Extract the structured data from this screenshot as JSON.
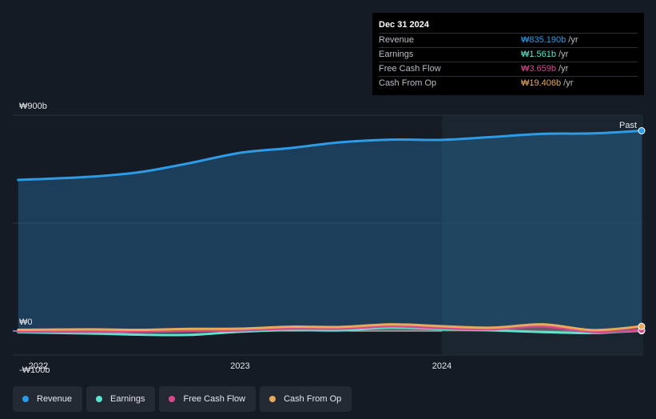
{
  "tooltip": {
    "date": "Dec 31 2024",
    "rows": [
      {
        "label": "Revenue",
        "value": "₩835.190b",
        "unit": "/yr",
        "color": "#2d9be6"
      },
      {
        "label": "Earnings",
        "value": "₩1.561b",
        "unit": "/yr",
        "color": "#5ee3cf"
      },
      {
        "label": "Free Cash Flow",
        "value": "₩3.659b",
        "unit": "/yr",
        "color": "#d64a8d"
      },
      {
        "label": "Cash From Op",
        "value": "₩19.406b",
        "unit": "/yr",
        "color": "#e8a95b"
      }
    ]
  },
  "past_label": "Past",
  "legend": [
    {
      "label": "Revenue",
      "color": "#2d9be6"
    },
    {
      "label": "Earnings",
      "color": "#5ee3cf"
    },
    {
      "label": "Free Cash Flow",
      "color": "#d64a8d"
    },
    {
      "label": "Cash From Op",
      "color": "#e8a95b"
    }
  ],
  "chart_data": {
    "type": "line",
    "y_unit": "billion KRW",
    "ylim": [
      -100,
      900
    ],
    "y_tick_labels": [
      "₩900b",
      "₩0",
      "-₩100b"
    ],
    "x_tick_labels": [
      "2022",
      "2023",
      "2024"
    ],
    "xlim": [
      2021.9,
      2024.99
    ],
    "series": [
      {
        "name": "Revenue",
        "color": "#2d9be6",
        "x": [
          2021.9,
          2022.25,
          2022.5,
          2022.75,
          2023.0,
          2023.25,
          2023.5,
          2023.75,
          2024.0,
          2024.25,
          2024.5,
          2024.75,
          2024.99
        ],
        "y": [
          630,
          643,
          662,
          700,
          743,
          763,
          787,
          798,
          797,
          809,
          822,
          824,
          835
        ]
      },
      {
        "name": "Earnings",
        "color": "#5ee3cf",
        "x": [
          2021.9,
          2022.25,
          2022.5,
          2022.75,
          2023.0,
          2023.25,
          2023.5,
          2023.75,
          2024.0,
          2024.25,
          2024.5,
          2024.75,
          2024.99
        ],
        "y": [
          -5,
          -10,
          -15,
          -16,
          -3,
          4,
          3,
          15,
          8,
          3,
          -4,
          -8,
          1.561
        ]
      },
      {
        "name": "Free Cash Flow",
        "color": "#d64a8d",
        "x": [
          2021.9,
          2022.25,
          2022.5,
          2022.75,
          2023.0,
          2023.25,
          2023.5,
          2023.75,
          2024.0,
          2024.25,
          2024.5,
          2024.75,
          2024.99
        ],
        "y": [
          -2,
          -3,
          -3,
          0,
          3,
          10,
          10,
          20,
          12,
          8,
          20,
          -4,
          3.659
        ]
      },
      {
        "name": "Cash From Op",
        "color": "#e8a95b",
        "x": [
          2021.9,
          2022.25,
          2022.5,
          2022.75,
          2023.0,
          2023.25,
          2023.5,
          2023.75,
          2024.0,
          2024.25,
          2024.5,
          2024.75,
          2024.99
        ],
        "y": [
          5,
          7,
          5,
          9,
          10,
          18,
          17,
          28,
          20,
          14,
          28,
          4,
          19.406
        ]
      }
    ],
    "grid": true,
    "legend_position": "bottom-left"
  }
}
